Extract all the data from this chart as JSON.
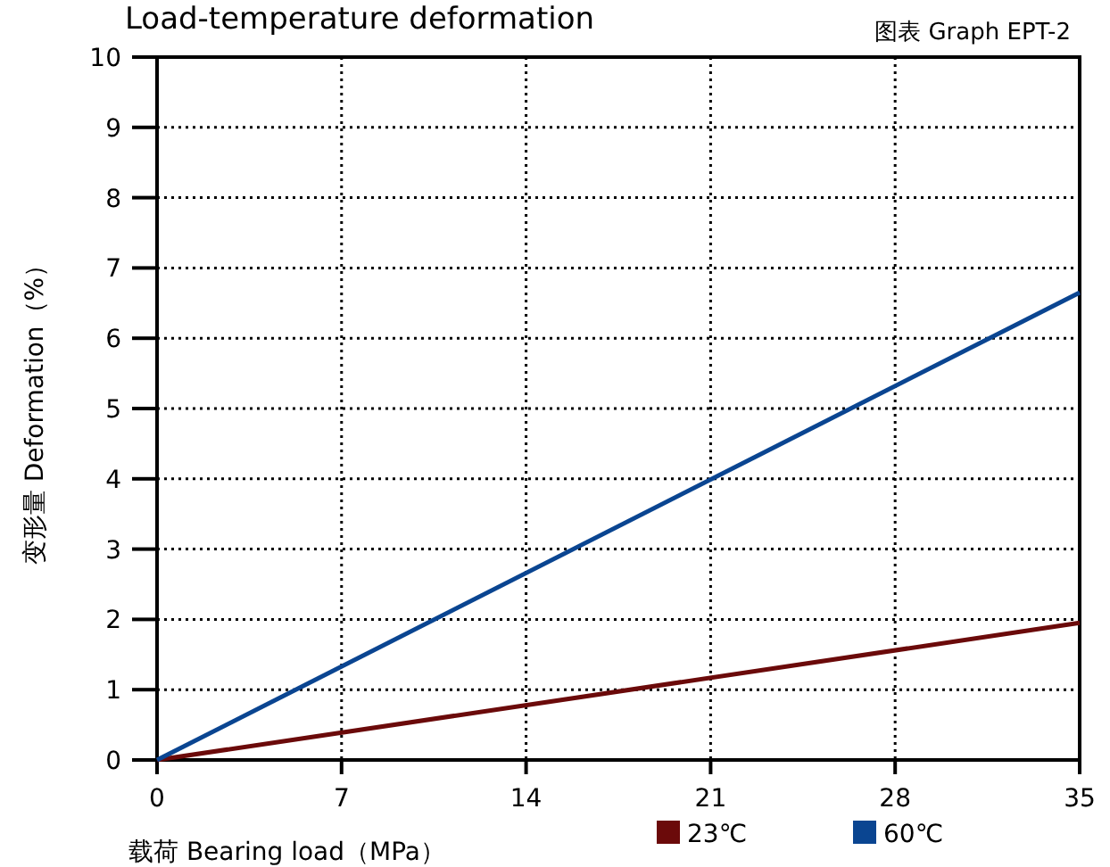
{
  "chart_data": {
    "type": "line",
    "title": "Load-temperature deformation",
    "subtitle": "图表 Graph EPT-2",
    "xlabel": "载荷 Bearing load（MPa）",
    "ylabel": "变形量 Deformation（%）",
    "x": [
      0,
      35
    ],
    "series": [
      {
        "name": "23℃",
        "color": "#6b0a0a",
        "values": [
          0,
          1.95
        ]
      },
      {
        "name": "60℃",
        "color": "#0a4591",
        "values": [
          0,
          6.65
        ]
      }
    ],
    "xlim": [
      0,
      35
    ],
    "xticks": [
      0,
      7,
      14,
      21,
      28,
      35
    ],
    "ylim": [
      0,
      10
    ],
    "yticks": [
      0,
      1,
      2,
      3,
      4,
      5,
      6,
      7,
      8,
      9,
      10
    ],
    "grid": true,
    "legend": "bottom"
  }
}
